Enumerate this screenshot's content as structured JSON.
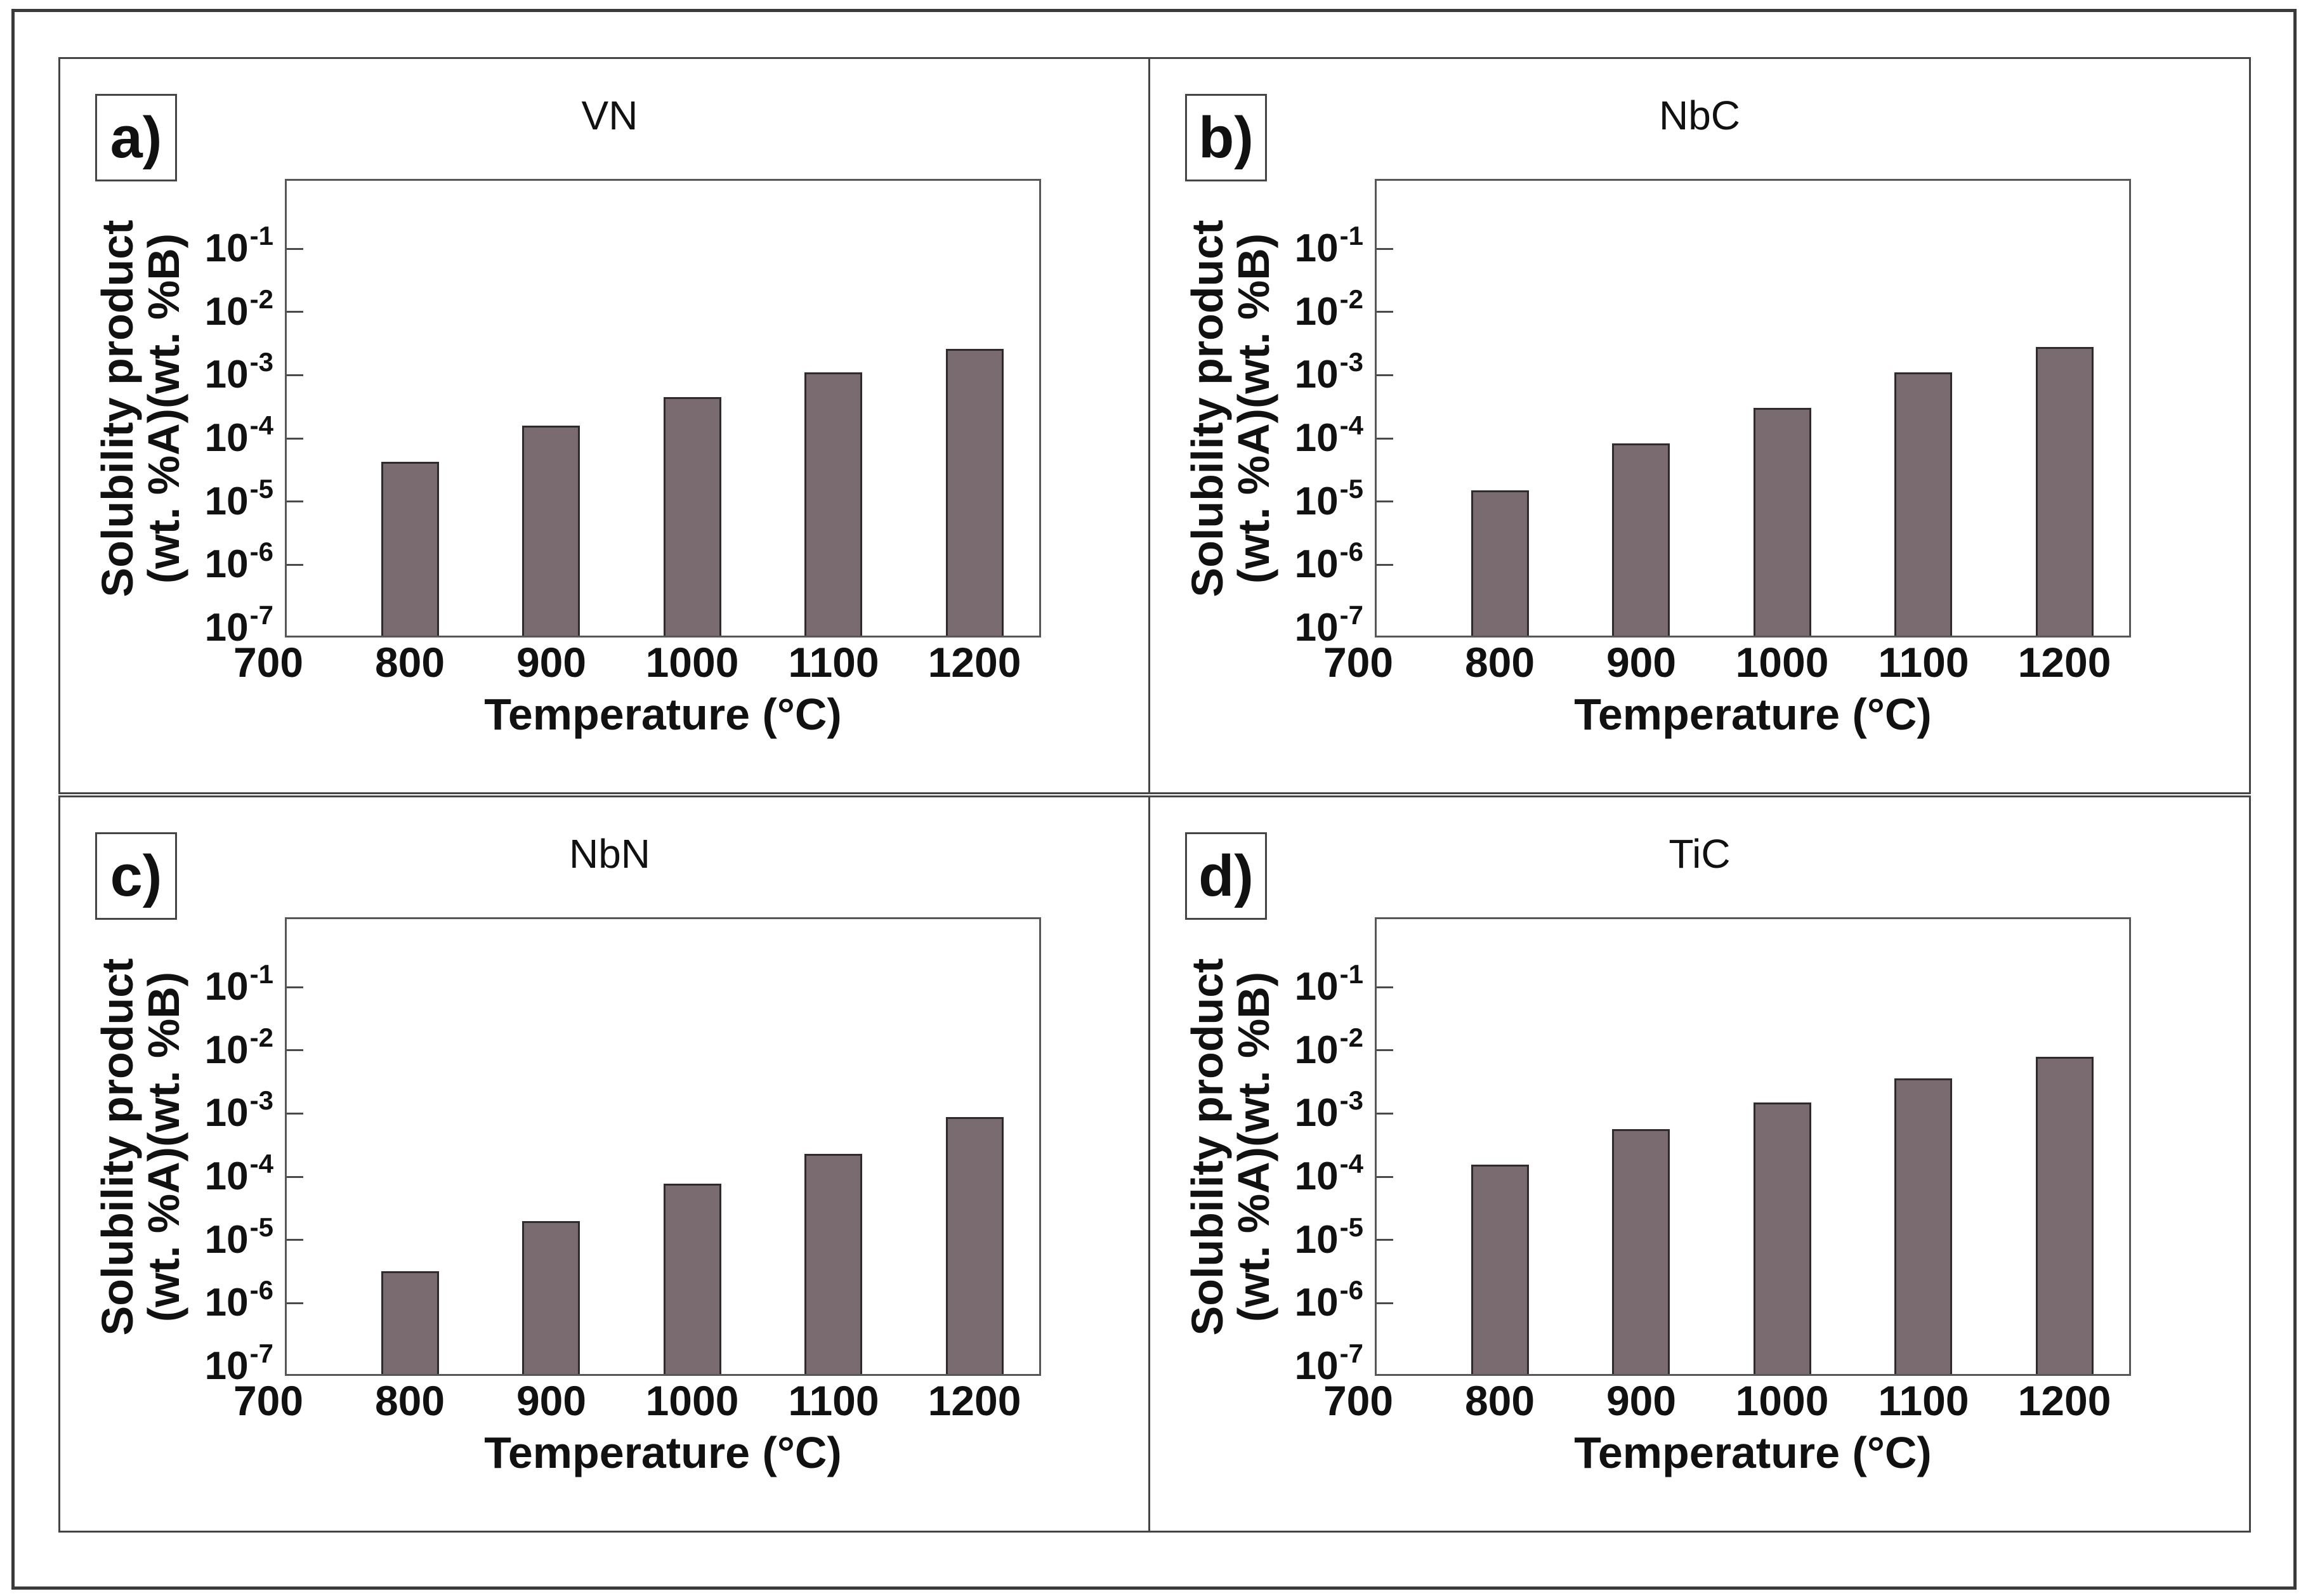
{
  "figure": {
    "background": "#ffffff",
    "y_axis_title_line1": "Solubility product",
    "y_axis_title_line2": "(wt. %A)(wt. %B)",
    "x_axis_title": "Temperature (°C)",
    "x_tick_labels": [
      "700",
      "800",
      "900",
      "1000",
      "1100",
      "1200"
    ],
    "y_tick_base": "10",
    "y_tick_exponents": [
      "-1",
      "-2",
      "-3",
      "-4",
      "-5",
      "-6",
      "-7"
    ]
  },
  "colors": {
    "bar_fill": "#796b6f",
    "bar_border": "#2f2b2d",
    "plot_box_line": "#57575a",
    "panel_border": "#454545",
    "outer_border": "#3a3a3a",
    "text": "#111111"
  },
  "chart_data": [
    {
      "type": "bar",
      "panel_label": "a)",
      "title": "VN",
      "xlabel": "Temperature (°C)",
      "ylabel": "Solubility product (wt. %A)(wt. %B)",
      "categories": [
        800,
        900,
        1000,
        1100,
        1200
      ],
      "values": [
        4.3e-05,
        0.00016,
        0.00045,
        0.0011,
        0.0026
      ],
      "x_ticks": [
        700,
        800,
        900,
        1000,
        1100,
        1200
      ],
      "x_axis_range": [
        700,
        1247
      ],
      "y_scale": "log",
      "y_ticks_labeled_log": [
        -1,
        -2,
        -3,
        -4,
        -5,
        -6,
        -7
      ],
      "y_tick_marks_log": [
        -1,
        -2,
        -3,
        -4,
        -5,
        -6
      ],
      "ylim_log": [
        -7.15,
        0.104
      ],
      "grid": false,
      "legend": "none"
    },
    {
      "type": "bar",
      "panel_label": "b)",
      "title": "NbC",
      "xlabel": "Temperature (°C)",
      "ylabel": "Solubility product (wt. %A)(wt. %B)",
      "categories": [
        800,
        900,
        1000,
        1100,
        1200
      ],
      "values": [
        1.5e-05,
        8.3e-05,
        0.0003,
        0.0011,
        0.0028
      ],
      "x_ticks": [
        700,
        800,
        900,
        1000,
        1100,
        1200
      ],
      "x_axis_range": [
        700,
        1247
      ],
      "y_scale": "log",
      "y_ticks_labeled_log": [
        -1,
        -2,
        -3,
        -4,
        -5,
        -6,
        -7
      ],
      "y_tick_marks_log": [
        -1,
        -2,
        -3,
        -4,
        -5,
        -6
      ],
      "ylim_log": [
        -7.15,
        0.104
      ],
      "grid": false,
      "legend": "none"
    },
    {
      "type": "bar",
      "panel_label": "c)",
      "title": "NbN",
      "xlabel": "Temperature (°C)",
      "ylabel": "Solubility product (wt. %A)(wt. %B)",
      "categories": [
        800,
        900,
        1000,
        1100,
        1200
      ],
      "values": [
        3.2e-06,
        2e-05,
        7.8e-05,
        0.00023,
        0.00087
      ],
      "x_ticks": [
        700,
        800,
        900,
        1000,
        1100,
        1200
      ],
      "x_axis_range": [
        700,
        1247
      ],
      "y_scale": "log",
      "y_ticks_labeled_log": [
        -1,
        -2,
        -3,
        -4,
        -5,
        -6,
        -7
      ],
      "y_tick_marks_log": [
        -1,
        -2,
        -3,
        -4,
        -5,
        -6
      ],
      "ylim_log": [
        -7.15,
        0.104
      ],
      "grid": false,
      "legend": "none"
    },
    {
      "type": "bar",
      "panel_label": "d)",
      "title": "TiC",
      "xlabel": "Temperature (°C)",
      "ylabel": "Solubility product (wt. %A)(wt. %B)",
      "categories": [
        800,
        900,
        1000,
        1100,
        1200
      ],
      "values": [
        0.000155,
        0.00056,
        0.0015,
        0.0036,
        0.0079
      ],
      "x_ticks": [
        700,
        800,
        900,
        1000,
        1100,
        1200
      ],
      "x_axis_range": [
        700,
        1247
      ],
      "y_scale": "log",
      "y_ticks_labeled_log": [
        -1,
        -2,
        -3,
        -4,
        -5,
        -6,
        -7
      ],
      "y_tick_marks_log": [
        -1,
        -2,
        -3,
        -4,
        -5,
        -6
      ],
      "ylim_log": [
        -7.15,
        0.104
      ],
      "grid": false,
      "legend": "none"
    }
  ]
}
